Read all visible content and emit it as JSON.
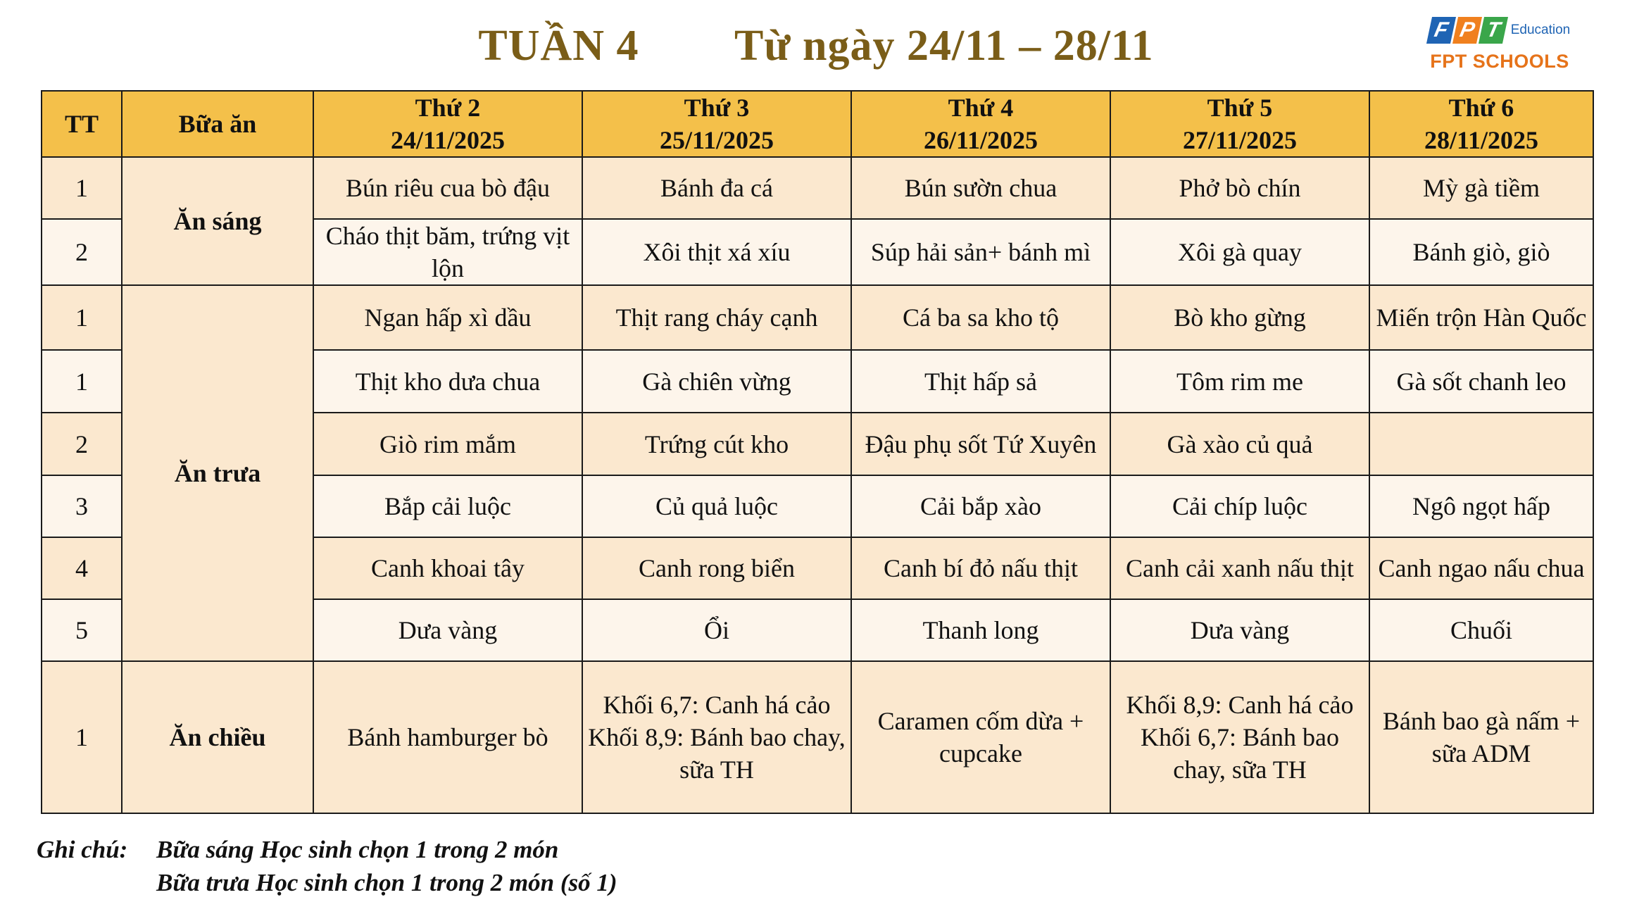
{
  "title": {
    "week": "TUẦN 4",
    "range": "Từ ngày 24/11 – 28/11"
  },
  "logo": {
    "letters": [
      "F",
      "P",
      "T"
    ],
    "education": "Education",
    "schools": "FPT SCHOOLS"
  },
  "table": {
    "headers": {
      "tt": "TT",
      "meal": "Bữa ăn",
      "days": [
        {
          "name": "Thứ 2",
          "date": "24/11/2025"
        },
        {
          "name": "Thứ 3",
          "date": "25/11/2025"
        },
        {
          "name": "Thứ 4",
          "date": "26/11/2025"
        },
        {
          "name": "Thứ 5",
          "date": "27/11/2025"
        },
        {
          "name": "Thứ 6",
          "date": "28/11/2025"
        }
      ]
    },
    "rows": [
      {
        "tt": "1",
        "meal": "Ăn sáng",
        "dishes": [
          "Bún riêu cua bò đậu",
          "Bánh đa cá",
          "Bún sườn chua",
          "Phở bò chín",
          "Mỳ gà tiềm"
        ]
      },
      {
        "tt": "2",
        "dishes": [
          "Cháo thịt băm, trứng vịt lộn",
          "Xôi thịt xá xíu",
          "Súp hải sản+ bánh mì",
          "Xôi gà quay",
          "Bánh giò, giò"
        ]
      },
      {
        "tt": "1",
        "meal": "Ăn trưa",
        "dishes": [
          "Ngan hấp xì dầu",
          "Thịt rang cháy cạnh",
          "Cá ba sa kho tộ",
          "Bò kho gừng",
          "Miến trộn Hàn Quốc"
        ]
      },
      {
        "tt": "1",
        "dishes": [
          "Thịt kho dưa chua",
          "Gà chiên vừng",
          "Thịt hấp sả",
          "Tôm rim me",
          "Gà sốt chanh leo"
        ]
      },
      {
        "tt": "2",
        "dishes": [
          "Giò rim mắm",
          "Trứng cút kho",
          "Đậu phụ sốt Tứ Xuyên",
          "Gà xào củ quả",
          ""
        ]
      },
      {
        "tt": "3",
        "dishes": [
          "Bắp cải luộc",
          "Củ quả luộc",
          "Cải bắp xào",
          "Cải chíp luộc",
          "Ngô ngọt hấp"
        ]
      },
      {
        "tt": "4",
        "dishes": [
          "Canh khoai tây",
          "Canh rong biển",
          "Canh bí đỏ nấu thịt",
          "Canh cải xanh nấu thịt",
          "Canh ngao nấu chua"
        ]
      },
      {
        "tt": "5",
        "dishes": [
          "Dưa vàng",
          "Ổi",
          "Thanh long",
          "Dưa vàng",
          "Chuối"
        ]
      },
      {
        "tt": "1",
        "meal": "Ăn chiều",
        "dishes": [
          "Bánh hamburger bò",
          "Khối 6,7: Canh há cảo Khối 8,9: Bánh bao chay, sữa TH",
          "Caramen cốm dừa + cupcake",
          "Khối 8,9: Canh há cảo Khối 6,7: Bánh bao chay, sữa TH",
          "Bánh bao gà nấm + sữa ADM"
        ]
      }
    ]
  },
  "notes": {
    "label": "Ghi chú:",
    "lines": [
      "Bữa sáng Học sinh chọn 1 trong 2 món",
      "Bữa trưa Học sinh chọn 1 trong 2 món (số 1)"
    ]
  }
}
